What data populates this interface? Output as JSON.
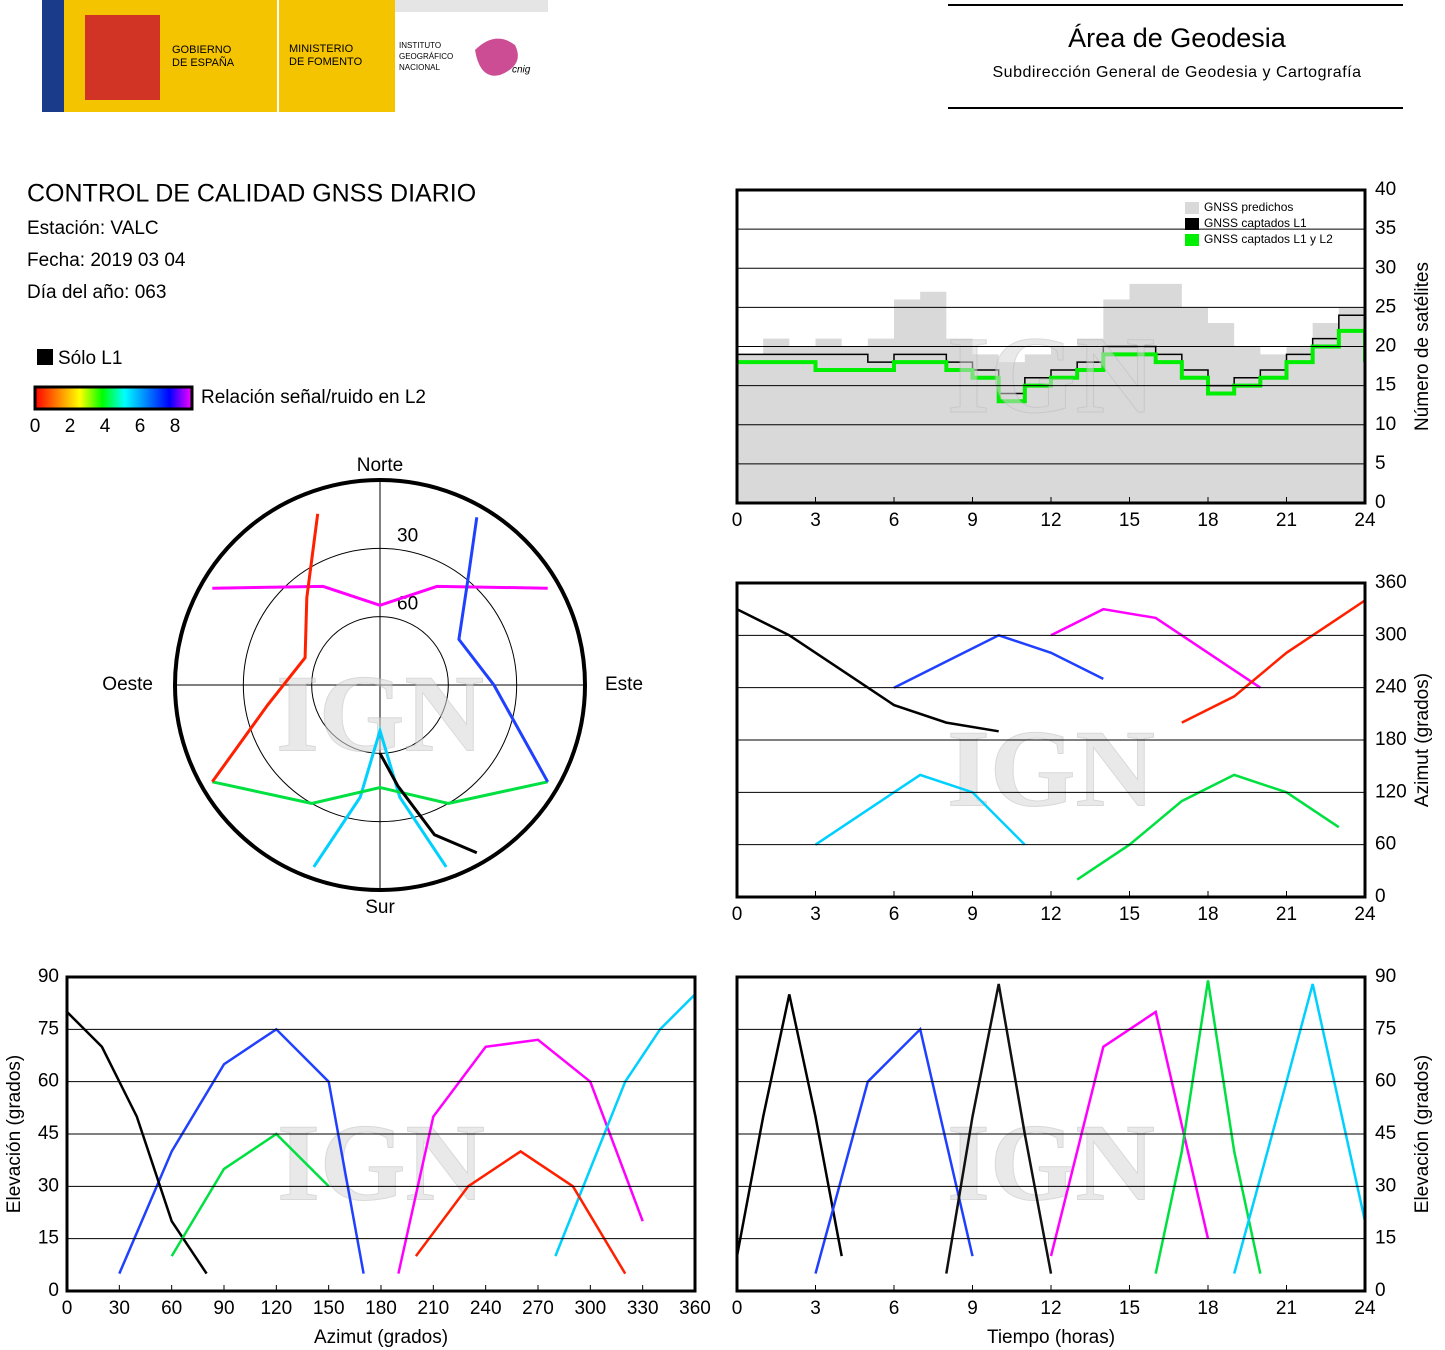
{
  "header": {
    "government": [
      "GOBIERNO",
      "DE ESPAÑA"
    ],
    "ministry": [
      "MINISTERIO",
      "DE FOMENTO"
    ],
    "institute": [
      "INSTITUTO",
      "GEOGRÁFICO",
      "NACIONAL"
    ],
    "cnig": "cnig",
    "area": "Área de Geodesia",
    "subdirectorate": "Subdirección General de Geodesia y Cartografía"
  },
  "info": {
    "title": "CONTROL DE CALIDAD GNSS DIARIO",
    "station": "Estación: VALC",
    "date": "Fecha: 2019 03 04",
    "day_of_year": "Día del año: 063",
    "only_l1": "Sólo L1",
    "colorbar_label": "Relación señal/ruido en L2",
    "colorbar_colors": [
      "#ff0000",
      "#ff8000",
      "#ffff00",
      "#00ff00",
      "#00ffff",
      "#0080ff",
      "#0000ff",
      "#ff00ff"
    ],
    "colorbar_ticks": [
      0,
      2,
      4,
      6,
      8
    ]
  },
  "watermark": "IGN",
  "chart_data": [
    {
      "type": "polar",
      "directions": {
        "north": "Norte",
        "south": "Sur",
        "east": "Este",
        "west": "Oeste"
      },
      "rlim": [
        90,
        0
      ],
      "rticks": [
        30,
        60
      ],
      "series": [
        {
          "color": "#ff00ff",
          "azimuth": [
            300,
            330,
            0,
            30,
            60
          ],
          "elevation": [
            5,
            40,
            55,
            40,
            5
          ]
        },
        {
          "color": "#00d0ff",
          "azimuth": [
            200,
            190,
            180,
            170,
            160
          ],
          "elevation": [
            5,
            40,
            70,
            40,
            5
          ]
        },
        {
          "color": "#00e040",
          "azimuth": [
            120,
            150,
            180,
            210,
            240
          ],
          "elevation": [
            5,
            30,
            45,
            30,
            5
          ]
        },
        {
          "color": "#2040ff",
          "azimuth": [
            30,
            40,
            60,
            90,
            120
          ],
          "elevation": [
            5,
            30,
            50,
            40,
            5
          ]
        },
        {
          "color": "#ff2000",
          "azimuth": [
            240,
            260,
            290,
            320,
            340
          ],
          "elevation": [
            5,
            40,
            55,
            40,
            10
          ]
        },
        {
          "color": "#000000",
          "azimuth": [
            150,
            160,
            170,
            180
          ],
          "elevation": [
            5,
            20,
            45,
            60
          ]
        }
      ]
    },
    {
      "type": "step",
      "y_label": "Número de satélites",
      "xlim": [
        0,
        24
      ],
      "xticks": [
        0,
        3,
        6,
        9,
        12,
        15,
        18,
        21,
        24
      ],
      "ylim": [
        0,
        40
      ],
      "yticks": [
        0,
        5,
        10,
        15,
        20,
        25,
        30,
        35,
        40
      ],
      "grid": true,
      "x": [
        0,
        1,
        2,
        3,
        4,
        5,
        6,
        7,
        8,
        9,
        10,
        11,
        12,
        13,
        14,
        15,
        16,
        17,
        18,
        19,
        20,
        21,
        22,
        23,
        24
      ],
      "series": [
        {
          "name": "GNSS predichos",
          "color": "#d9d9d9",
          "fill": true,
          "values": [
            19,
            21,
            20,
            21,
            20,
            21,
            26,
            27,
            21,
            19,
            18,
            19,
            20,
            21,
            26,
            28,
            28,
            25,
            23,
            20,
            19,
            20,
            23,
            25,
            21
          ]
        },
        {
          "name": "GNSS captados L1",
          "color": "#000000",
          "values": [
            19,
            19,
            19,
            19,
            19,
            18,
            19,
            19,
            18,
            17,
            14,
            16,
            17,
            18,
            20,
            20,
            19,
            17,
            15,
            16,
            17,
            19,
            21,
            24,
            20
          ]
        },
        {
          "name": "GNSS captados L1 y L2",
          "color": "#00ee00",
          "values": [
            18,
            18,
            18,
            17,
            17,
            17,
            18,
            18,
            17,
            16,
            13,
            15,
            16,
            17,
            19,
            19,
            18,
            16,
            14,
            15,
            16,
            18,
            20,
            22,
            18
          ]
        }
      ]
    },
    {
      "type": "tracks",
      "y_label": "Azimut (grados)",
      "xlim": [
        0,
        24
      ],
      "xticks": [
        0,
        3,
        6,
        9,
        12,
        15,
        18,
        21,
        24
      ],
      "ylim": [
        0,
        360
      ],
      "yticks": [
        0,
        60,
        120,
        180,
        240,
        300,
        360
      ],
      "grid": true,
      "series": [
        {
          "color": "#000000",
          "x": [
            0,
            2,
            4,
            6,
            8,
            10
          ],
          "values": [
            330,
            300,
            260,
            220,
            200,
            190
          ]
        },
        {
          "color": "#00d0ff",
          "x": [
            3,
            5,
            7,
            9,
            11
          ],
          "values": [
            60,
            100,
            140,
            120,
            60
          ]
        },
        {
          "color": "#ff00ff",
          "x": [
            12,
            14,
            16,
            18,
            20
          ],
          "values": [
            300,
            330,
            320,
            280,
            240
          ]
        },
        {
          "color": "#00e040",
          "x": [
            13,
            15,
            17,
            19,
            21,
            23
          ],
          "values": [
            20,
            60,
            110,
            140,
            120,
            80
          ]
        },
        {
          "color": "#2040ff",
          "x": [
            6,
            8,
            10,
            12,
            14
          ],
          "values": [
            240,
            270,
            300,
            280,
            250
          ]
        },
        {
          "color": "#ff2000",
          "x": [
            17,
            19,
            21,
            23,
            24
          ],
          "values": [
            200,
            230,
            280,
            320,
            340
          ]
        }
      ]
    },
    {
      "type": "tracks",
      "x_label": "Azimut (grados)",
      "y_label": "Elevación (grados)",
      "xlim": [
        0,
        360
      ],
      "xticks": [
        0,
        30,
        60,
        90,
        120,
        150,
        180,
        210,
        240,
        270,
        300,
        330,
        360
      ],
      "ylim": [
        0,
        90
      ],
      "yticks": [
        0,
        15,
        30,
        45,
        60,
        75,
        90
      ],
      "grid": true,
      "series": [
        {
          "color": "#2040ff",
          "x": [
            30,
            60,
            90,
            120,
            150,
            170
          ],
          "values": [
            5,
            40,
            65,
            75,
            60,
            5
          ]
        },
        {
          "color": "#ff00ff",
          "x": [
            190,
            210,
            240,
            270,
            300,
            330
          ],
          "values": [
            5,
            50,
            70,
            72,
            60,
            20
          ]
        },
        {
          "color": "#000000",
          "x": [
            0,
            20,
            40,
            60,
            80
          ],
          "values": [
            80,
            70,
            50,
            20,
            5
          ]
        },
        {
          "color": "#00d0ff",
          "x": [
            280,
            300,
            320,
            340,
            360
          ],
          "values": [
            10,
            35,
            60,
            75,
            85
          ]
        },
        {
          "color": "#00e040",
          "x": [
            60,
            90,
            120,
            150
          ],
          "values": [
            10,
            35,
            45,
            30
          ]
        },
        {
          "color": "#ff2000",
          "x": [
            200,
            230,
            260,
            290,
            320
          ],
          "values": [
            10,
            30,
            40,
            30,
            5
          ]
        }
      ]
    },
    {
      "type": "tracks",
      "x_label": "Tiempo (horas)",
      "y_label": "Elevación (grados)",
      "xlim": [
        0,
        24
      ],
      "xticks": [
        0,
        3,
        6,
        9,
        12,
        15,
        18,
        21,
        24
      ],
      "ylim": [
        0,
        90
      ],
      "yticks": [
        0,
        15,
        30,
        45,
        60,
        75,
        90
      ],
      "grid": true,
      "series": [
        {
          "color": "#000000",
          "x": [
            0,
            1,
            2,
            3,
            4
          ],
          "values": [
            10,
            50,
            85,
            50,
            10
          ]
        },
        {
          "color": "#2040ff",
          "x": [
            3,
            5,
            7,
            9
          ],
          "values": [
            5,
            60,
            75,
            10
          ]
        },
        {
          "color": "#111111",
          "x": [
            8,
            9,
            10,
            11,
            12
          ],
          "values": [
            5,
            50,
            88,
            45,
            5
          ]
        },
        {
          "color": "#ff00ff",
          "x": [
            12,
            14,
            16,
            18
          ],
          "values": [
            10,
            70,
            80,
            15
          ]
        },
        {
          "color": "#00e040",
          "x": [
            16,
            17,
            18,
            19,
            20
          ],
          "values": [
            5,
            40,
            89,
            40,
            5
          ]
        },
        {
          "color": "#00d0ff",
          "x": [
            19,
            21,
            22,
            24
          ],
          "values": [
            5,
            60,
            88,
            20
          ]
        }
      ]
    }
  ]
}
